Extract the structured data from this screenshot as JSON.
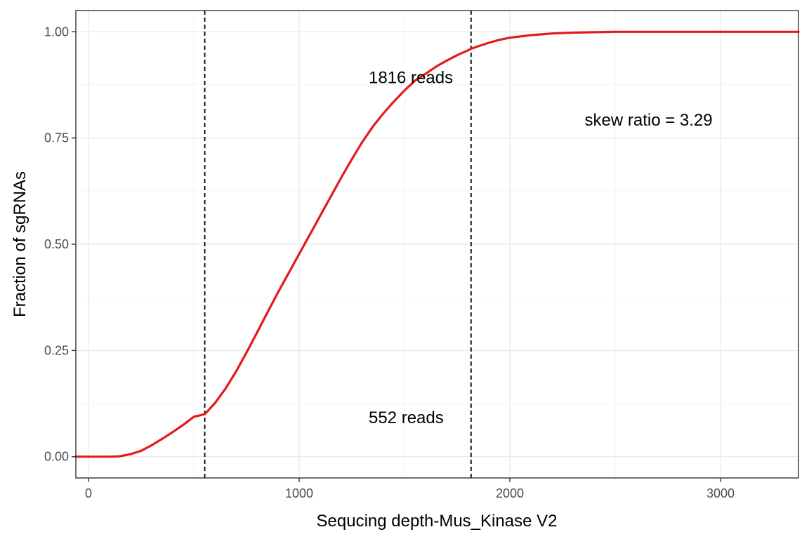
{
  "chart_data": {
    "type": "line",
    "xlabel": "Sequcing depth-Mus_Kinase V2",
    "ylabel": "Fraction of sgRNAs",
    "xlim": [
      -60,
      3370
    ],
    "ylim": [
      -0.05,
      1.05
    ],
    "x_ticks": [
      0,
      1000,
      2000,
      3000
    ],
    "x_tick_labels": [
      "0",
      "1000",
      "2000",
      "3000"
    ],
    "y_ticks": [
      0,
      0.25,
      0.5,
      0.75,
      1.0
    ],
    "y_tick_labels": [
      "0.00",
      "0.25",
      "0.50",
      "0.75",
      "1.00"
    ],
    "grid": true,
    "series": [
      {
        "color": "#e31a1c",
        "x": [
          -60,
          0,
          100,
          150,
          200,
          250,
          300,
          350,
          400,
          450,
          500,
          552,
          600,
          650,
          700,
          750,
          800,
          850,
          900,
          950,
          1000,
          1050,
          1100,
          1150,
          1200,
          1250,
          1300,
          1350,
          1400,
          1450,
          1500,
          1550,
          1600,
          1650,
          1700,
          1750,
          1800,
          1816,
          1850,
          1900,
          1950,
          2000,
          2100,
          2200,
          2300,
          2400,
          2500,
          2700,
          3000,
          3370
        ],
        "y": [
          0,
          0,
          0,
          0.001,
          0.006,
          0.014,
          0.027,
          0.042,
          0.058,
          0.075,
          0.094,
          0.1,
          0.126,
          0.16,
          0.2,
          0.245,
          0.292,
          0.34,
          0.387,
          0.432,
          0.477,
          0.522,
          0.567,
          0.612,
          0.657,
          0.7,
          0.741,
          0.777,
          0.808,
          0.836,
          0.862,
          0.885,
          0.901,
          0.918,
          0.932,
          0.945,
          0.956,
          0.96,
          0.966,
          0.974,
          0.981,
          0.986,
          0.992,
          0.996,
          0.998,
          0.999,
          1.0,
          1.0,
          1.0,
          1.0
        ]
      }
    ],
    "vlines": [
      552,
      1816
    ],
    "annotations": [
      {
        "text": "1816 reads",
        "x": 1330,
        "y": 0.892
      },
      {
        "text": "552 reads",
        "x": 1330,
        "y": 0.092
      },
      {
        "text": "skew ratio = 3.29",
        "x": 2355,
        "y": 0.792
      }
    ]
  }
}
